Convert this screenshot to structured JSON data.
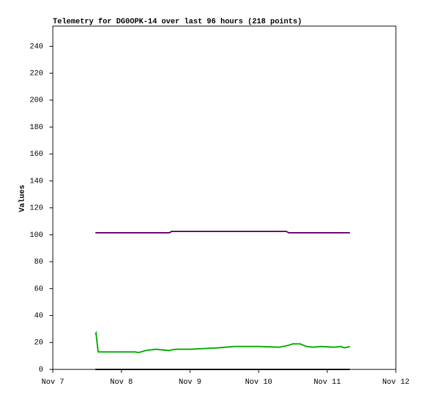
{
  "chart_data": {
    "type": "line",
    "title": "Telemetry for DG0OPK-14 over last 96 hours (218 points)",
    "y_label": "Values",
    "x": [
      7.62,
      7.63,
      7.66,
      8.0,
      8.2,
      8.25,
      8.35,
      8.5,
      8.7,
      8.73,
      8.8,
      9.0,
      9.4,
      9.65,
      10.0,
      10.3,
      10.4,
      10.44,
      10.5,
      10.6,
      10.7,
      10.8,
      10.9,
      11.1,
      11.2,
      11.25,
      11.33
    ],
    "series": [
      {
        "color": "#660066",
        "values": [
          101.5,
          101.5,
          101.5,
          101.5,
          101.5,
          101.5,
          101.5,
          101.5,
          101.5,
          102.5,
          102.5,
          102.5,
          102.5,
          102.5,
          102.5,
          102.5,
          102.5,
          101.5,
          101.5,
          101.5,
          101.5,
          101.5,
          101.5,
          101.5,
          101.5,
          101.5,
          101.5
        ]
      },
      {
        "color": "#00aa00",
        "values": [
          26,
          27,
          13,
          13,
          13,
          12.5,
          14,
          15,
          14,
          14.5,
          15,
          15,
          16,
          17,
          17,
          16.5,
          17.5,
          18,
          19,
          19,
          17,
          16.5,
          17,
          16.5,
          17,
          16,
          17
        ]
      },
      {
        "color": "#000000",
        "values": [
          0,
          0,
          0,
          0,
          0,
          0,
          0,
          0,
          0,
          0,
          0,
          0,
          0,
          0,
          0,
          0,
          0,
          0,
          0,
          0,
          0,
          0,
          0,
          0,
          0,
          0,
          0
        ]
      }
    ],
    "xlim": [
      7,
      12
    ],
    "xticks": [
      {
        "value": 7,
        "label": "Nov 7"
      },
      {
        "value": 8,
        "label": "Nov 8"
      },
      {
        "value": 9,
        "label": "Nov 9"
      },
      {
        "value": 10,
        "label": "Nov 10"
      },
      {
        "value": 11,
        "label": "Nov 11"
      },
      {
        "value": 12,
        "label": "Nov 12"
      }
    ],
    "ylim": [
      0,
      255
    ],
    "yticks": [
      0,
      20,
      40,
      60,
      80,
      100,
      120,
      140,
      160,
      180,
      200,
      220,
      240
    ],
    "grid": false
  }
}
